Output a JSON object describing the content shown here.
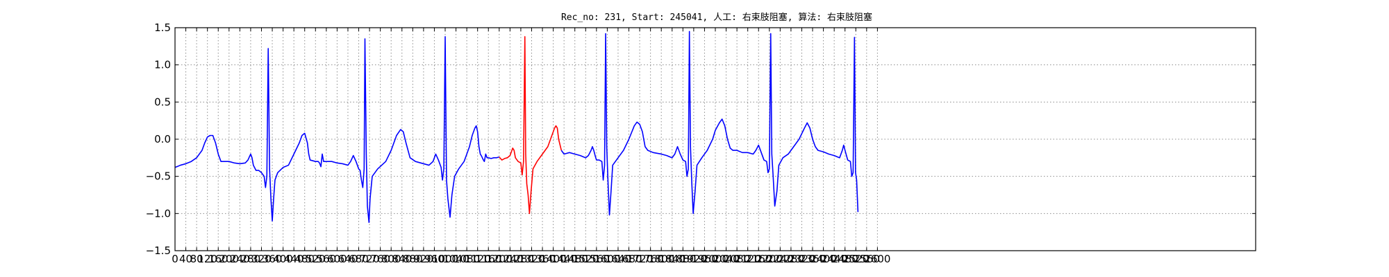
{
  "chart_data": {
    "type": "line",
    "title": "Rec_no: 231, Start: 245041, 人工: 右束肢阻塞, 算法: 右束肢阻塞",
    "xlabel": "",
    "ylabel": "",
    "xlim": [
      0,
      4000
    ],
    "ylim": [
      -1.5,
      1.5
    ],
    "grid": true,
    "y_ticks": [
      -1.5,
      -1.0,
      -0.5,
      0.0,
      0.5,
      1.0,
      1.5
    ],
    "y_tick_labels": [
      "−1.5",
      "−1.0",
      "−0.5",
      "0.0",
      "0.5",
      "1.0",
      "1.5"
    ],
    "x_ticks": [
      0,
      40,
      80,
      120,
      160,
      200,
      240,
      280,
      320,
      360,
      400,
      440,
      480,
      520,
      560,
      600,
      640,
      680,
      720,
      760,
      800,
      840,
      880,
      920,
      960,
      1000,
      1040,
      1080,
      1120,
      1160,
      1200,
      1240,
      1280,
      1320,
      1360,
      1400,
      1440,
      1480,
      1520,
      1560,
      1600,
      1640,
      1680,
      1720,
      1760,
      1800,
      1840,
      1880,
      1920,
      1960,
      2000,
      2040,
      2080,
      2120,
      2160,
      2200,
      2240,
      2280,
      2320,
      2360,
      2400,
      2440,
      2480,
      2520,
      2560,
      2600
    ],
    "x_tick_labels": [
      "0",
      "40",
      "80",
      "120",
      "160",
      "200",
      "240",
      "280",
      "320",
      "360",
      "400",
      "440",
      "480",
      "520",
      "560",
      "600",
      "640",
      "680",
      "720",
      "760",
      "800",
      "840",
      "880",
      "920",
      "960",
      "1000",
      "1040",
      "1080",
      "1120",
      "1160",
      "1200",
      "1240",
      "1280",
      "1320",
      "1360",
      "1400",
      "1440",
      "1480",
      "1520",
      "1560",
      "1600",
      "1640",
      "1680",
      "1720",
      "1760",
      "1800",
      "1840",
      "1880",
      "1920",
      "1960",
      "2000",
      "2040",
      "2080",
      "2120",
      "2160",
      "2200",
      "2240",
      "2280",
      "2320",
      "2360",
      "2400",
      "2440",
      "2480",
      "2520",
      "2560",
      "2600"
    ],
    "series": [
      {
        "color": "#0000ff",
        "points": [
          [
            0,
            -0.38
          ],
          [
            20,
            -0.35
          ],
          [
            40,
            -0.33
          ],
          [
            60,
            -0.3
          ],
          [
            80,
            -0.25
          ],
          [
            100,
            -0.15
          ],
          [
            110,
            -0.05
          ],
          [
            120,
            0.03
          ],
          [
            130,
            0.05
          ],
          [
            140,
            0.05
          ],
          [
            150,
            -0.05
          ],
          [
            160,
            -0.2
          ],
          [
            170,
            -0.3
          ],
          [
            200,
            -0.3
          ],
          [
            220,
            -0.32
          ],
          [
            240,
            -0.33
          ],
          [
            260,
            -0.32
          ],
          [
            270,
            -0.28
          ],
          [
            280,
            -0.2
          ],
          [
            285,
            -0.25
          ],
          [
            290,
            -0.35
          ],
          [
            300,
            -0.42
          ],
          [
            310,
            -0.42
          ],
          [
            320,
            -0.45
          ],
          [
            330,
            -0.5
          ],
          [
            335,
            -0.65
          ],
          [
            340,
            -0.5
          ],
          [
            345,
            1.22
          ],
          [
            350,
            -0.4
          ],
          [
            355,
            -0.8
          ],
          [
            360,
            -1.1
          ],
          [
            365,
            -0.8
          ],
          [
            370,
            -0.55
          ],
          [
            380,
            -0.45
          ],
          [
            400,
            -0.38
          ],
          [
            420,
            -0.35
          ],
          [
            440,
            -0.2
          ],
          [
            460,
            -0.05
          ],
          [
            470,
            0.05
          ],
          [
            480,
            0.08
          ],
          [
            490,
            -0.05
          ],
          [
            495,
            -0.2
          ],
          [
            500,
            -0.28
          ],
          [
            520,
            -0.3
          ],
          [
            530,
            -0.3
          ],
          [
            535,
            -0.32
          ],
          [
            540,
            -0.37
          ],
          [
            545,
            -0.2
          ],
          [
            550,
            -0.3
          ],
          [
            580,
            -0.3
          ],
          [
            600,
            -0.32
          ],
          [
            620,
            -0.33
          ],
          [
            640,
            -0.35
          ],
          [
            650,
            -0.3
          ],
          [
            660,
            -0.22
          ],
          [
            670,
            -0.3
          ],
          [
            680,
            -0.4
          ],
          [
            685,
            -0.42
          ],
          [
            690,
            -0.55
          ],
          [
            695,
            -0.65
          ],
          [
            700,
            -0.4
          ],
          [
            703,
            1.35
          ],
          [
            708,
            -0.2
          ],
          [
            712,
            -0.9
          ],
          [
            718,
            -1.12
          ],
          [
            722,
            -0.8
          ],
          [
            730,
            -0.5
          ],
          [
            750,
            -0.4
          ],
          [
            780,
            -0.3
          ],
          [
            800,
            -0.15
          ],
          [
            820,
            0.05
          ],
          [
            835,
            0.13
          ],
          [
            845,
            0.1
          ],
          [
            855,
            -0.05
          ],
          [
            870,
            -0.25
          ],
          [
            890,
            -0.3
          ],
          [
            920,
            -0.33
          ],
          [
            940,
            -0.35
          ],
          [
            955,
            -0.3
          ],
          [
            965,
            -0.2
          ],
          [
            975,
            -0.28
          ],
          [
            985,
            -0.38
          ],
          [
            990,
            -0.55
          ],
          [
            995,
            -0.4
          ],
          [
            1000,
            1.38
          ],
          [
            1005,
            -0.55
          ],
          [
            1010,
            -0.8
          ],
          [
            1018,
            -1.05
          ],
          [
            1025,
            -0.75
          ],
          [
            1035,
            -0.5
          ],
          [
            1050,
            -0.4
          ],
          [
            1070,
            -0.3
          ],
          [
            1080,
            -0.2
          ],
          [
            1090,
            -0.1
          ],
          [
            1100,
            0.05
          ],
          [
            1110,
            0.15
          ],
          [
            1115,
            0.18
          ],
          [
            1120,
            0.1
          ],
          [
            1125,
            -0.1
          ],
          [
            1130,
            -0.2
          ],
          [
            1135,
            -0.23
          ],
          [
            1140,
            -0.27
          ],
          [
            1145,
            -0.3
          ],
          [
            1150,
            -0.2
          ],
          [
            1155,
            -0.25
          ],
          [
            1160,
            -0.25
          ],
          [
            1170,
            -0.26
          ],
          [
            1180,
            -0.25
          ],
          [
            1190,
            -0.25
          ],
          [
            1200,
            -0.24
          ]
        ]
      },
      {
        "color": "#ff0000",
        "points": [
          [
            1200,
            -0.24
          ],
          [
            1210,
            -0.28
          ],
          [
            1220,
            -0.26
          ],
          [
            1230,
            -0.25
          ],
          [
            1240,
            -0.22
          ],
          [
            1250,
            -0.12
          ],
          [
            1255,
            -0.15
          ],
          [
            1260,
            -0.25
          ],
          [
            1270,
            -0.3
          ],
          [
            1280,
            -0.32
          ],
          [
            1285,
            -0.48
          ],
          [
            1290,
            -0.3
          ],
          [
            1295,
            1.38
          ],
          [
            1298,
            -0.2
          ],
          [
            1302,
            -0.6
          ],
          [
            1307,
            -0.75
          ],
          [
            1312,
            -1.0
          ],
          [
            1318,
            -0.7
          ],
          [
            1325,
            -0.4
          ],
          [
            1340,
            -0.3
          ],
          [
            1360,
            -0.2
          ],
          [
            1380,
            -0.1
          ],
          [
            1395,
            0.05
          ],
          [
            1405,
            0.15
          ],
          [
            1410,
            0.18
          ],
          [
            1415,
            0.15
          ],
          [
            1420,
            0.0
          ],
          [
            1430,
            -0.15
          ]
        ]
      },
      {
        "color": "#0000ff",
        "points": [
          [
            1430,
            -0.15
          ],
          [
            1440,
            -0.2
          ],
          [
            1460,
            -0.18
          ],
          [
            1480,
            -0.2
          ],
          [
            1500,
            -0.22
          ],
          [
            1520,
            -0.25
          ],
          [
            1530,
            -0.22
          ],
          [
            1540,
            -0.15
          ],
          [
            1545,
            -0.1
          ],
          [
            1550,
            -0.15
          ],
          [
            1555,
            -0.22
          ],
          [
            1560,
            -0.28
          ],
          [
            1570,
            -0.28
          ],
          [
            1580,
            -0.3
          ],
          [
            1585,
            -0.55
          ],
          [
            1590,
            -0.35
          ],
          [
            1594,
            1.42
          ],
          [
            1598,
            -0.1
          ],
          [
            1603,
            -0.6
          ],
          [
            1608,
            -1.02
          ],
          [
            1614,
            -0.7
          ],
          [
            1620,
            -0.35
          ],
          [
            1640,
            -0.25
          ],
          [
            1660,
            -0.15
          ],
          [
            1680,
            0.0
          ],
          [
            1700,
            0.18
          ],
          [
            1710,
            0.23
          ],
          [
            1720,
            0.2
          ],
          [
            1730,
            0.1
          ],
          [
            1740,
            -0.1
          ],
          [
            1750,
            -0.15
          ],
          [
            1770,
            -0.18
          ],
          [
            1800,
            -0.2
          ],
          [
            1820,
            -0.22
          ],
          [
            1840,
            -0.25
          ],
          [
            1850,
            -0.2
          ],
          [
            1860,
            -0.1
          ],
          [
            1870,
            -0.2
          ],
          [
            1880,
            -0.28
          ],
          [
            1890,
            -0.3
          ],
          [
            1895,
            -0.5
          ],
          [
            1900,
            -0.4
          ],
          [
            1904,
            1.45
          ],
          [
            1908,
            -0.1
          ],
          [
            1913,
            -0.6
          ],
          [
            1918,
            -1.0
          ],
          [
            1925,
            -0.7
          ],
          [
            1932,
            -0.35
          ],
          [
            1950,
            -0.25
          ],
          [
            1970,
            -0.15
          ],
          [
            1990,
            0.0
          ],
          [
            2000,
            0.12
          ],
          [
            2015,
            0.22
          ],
          [
            2025,
            0.27
          ],
          [
            2035,
            0.18
          ],
          [
            2045,
            0.0
          ],
          [
            2055,
            -0.12
          ],
          [
            2065,
            -0.15
          ],
          [
            2080,
            -0.15
          ],
          [
            2100,
            -0.18
          ],
          [
            2120,
            -0.18
          ],
          [
            2140,
            -0.2
          ],
          [
            2150,
            -0.15
          ],
          [
            2160,
            -0.08
          ],
          [
            2170,
            -0.18
          ],
          [
            2180,
            -0.28
          ],
          [
            2190,
            -0.3
          ],
          [
            2195,
            -0.45
          ],
          [
            2200,
            -0.4
          ],
          [
            2205,
            1.42
          ],
          [
            2209,
            -0.2
          ],
          [
            2214,
            -0.5
          ],
          [
            2220,
            -0.9
          ],
          [
            2228,
            -0.7
          ],
          [
            2235,
            -0.35
          ],
          [
            2250,
            -0.25
          ],
          [
            2270,
            -0.2
          ],
          [
            2290,
            -0.1
          ],
          [
            2310,
            0.0
          ],
          [
            2330,
            0.15
          ],
          [
            2340,
            0.22
          ],
          [
            2350,
            0.15
          ],
          [
            2360,
            0.0
          ],
          [
            2370,
            -0.1
          ],
          [
            2380,
            -0.15
          ],
          [
            2400,
            -0.17
          ],
          [
            2420,
            -0.2
          ],
          [
            2440,
            -0.22
          ],
          [
            2460,
            -0.25
          ],
          [
            2470,
            -0.15
          ],
          [
            2475,
            -0.08
          ],
          [
            2480,
            -0.15
          ],
          [
            2490,
            -0.28
          ],
          [
            2500,
            -0.3
          ],
          [
            2505,
            -0.5
          ],
          [
            2510,
            -0.45
          ],
          [
            2515,
            1.37
          ],
          [
            2519,
            -0.45
          ],
          [
            2523,
            -0.55
          ],
          [
            2528,
            -0.98
          ]
        ]
      }
    ]
  }
}
